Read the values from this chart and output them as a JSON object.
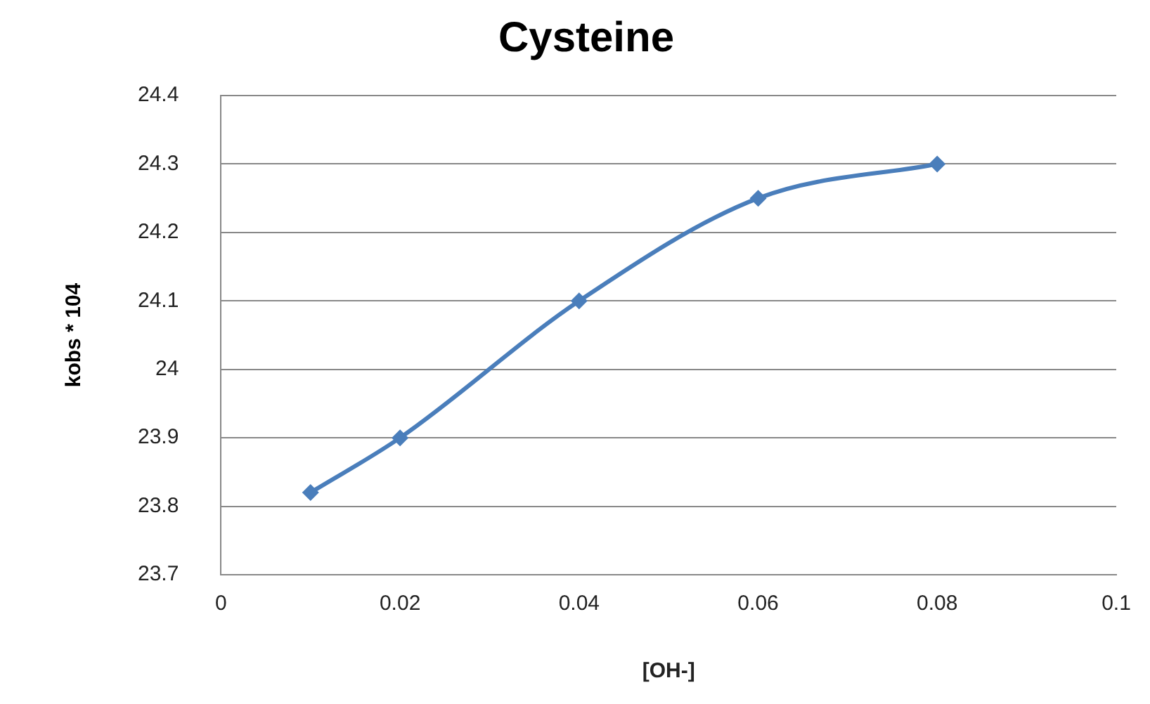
{
  "chart_data": {
    "type": "line",
    "title": "Cysteine",
    "xlabel": "[OH-]",
    "ylabel": "kobs * 104",
    "x": [
      0.01,
      0.02,
      0.04,
      0.06,
      0.08
    ],
    "series": [
      {
        "color": "#4a7ebb",
        "values": [
          23.82,
          23.9,
          24.1,
          24.25,
          24.3
        ]
      }
    ],
    "xlim": [
      0,
      0.1
    ],
    "xticks": [
      0,
      0.02,
      0.04,
      0.06,
      0.08,
      0.1
    ],
    "ylim": [
      23.7,
      24.4
    ],
    "yticks": [
      23.7,
      23.8,
      23.9,
      24,
      24.1,
      24.2,
      24.3,
      24.4
    ],
    "grid": "y",
    "legend": false,
    "marker": "diamond",
    "line_style": "solid"
  }
}
